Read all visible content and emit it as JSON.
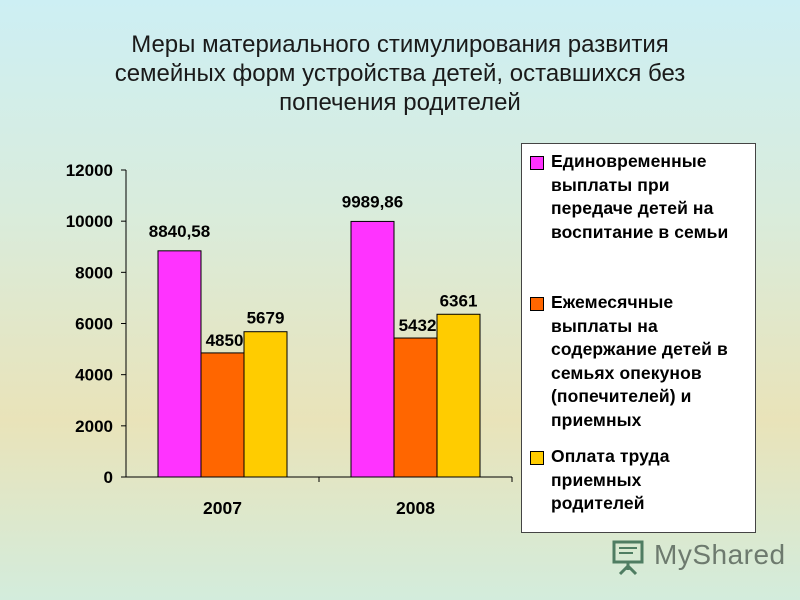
{
  "chart_data": {
    "type": "bar",
    "title": "Меры материального стимулирования развития\nсемейных форм устройства детей, оставшихся без\nпопечения родителей",
    "categories": [
      "2007",
      "2008"
    ],
    "series": [
      {
        "name": "Единовременные\nвыплаты при\nпередаче детей на\nвоспитание в семьи",
        "color": "#ff33ff",
        "values": [
          8840.58,
          9989.86
        ],
        "labels": [
          "8840,58",
          "9989,86"
        ]
      },
      {
        "name": "Ежемесячные\nвыплаты на\nсодержание детей в\nсемьях опекунов\n(попечителей) и\nприемных",
        "color": "#ff6600",
        "values": [
          4850,
          5432
        ],
        "labels": [
          "4850",
          "5432"
        ]
      },
      {
        "name": "Оплата труда\nприемных\nродителей",
        "color": "#ffcc00",
        "values": [
          5679,
          6361
        ],
        "labels": [
          "5679",
          "6361"
        ]
      }
    ],
    "ylim": [
      0,
      12000
    ],
    "yticks": [
      0,
      2000,
      4000,
      6000,
      8000,
      10000,
      12000
    ],
    "ytick_labels": [
      "0",
      "2000",
      "4000",
      "6000",
      "8000",
      "10000",
      "12000"
    ],
    "xlabel": "",
    "ylabel": "",
    "grid": false,
    "legend_position": "right"
  },
  "watermark": {
    "text": "MyShared",
    "icon": "presentation-board-icon"
  }
}
